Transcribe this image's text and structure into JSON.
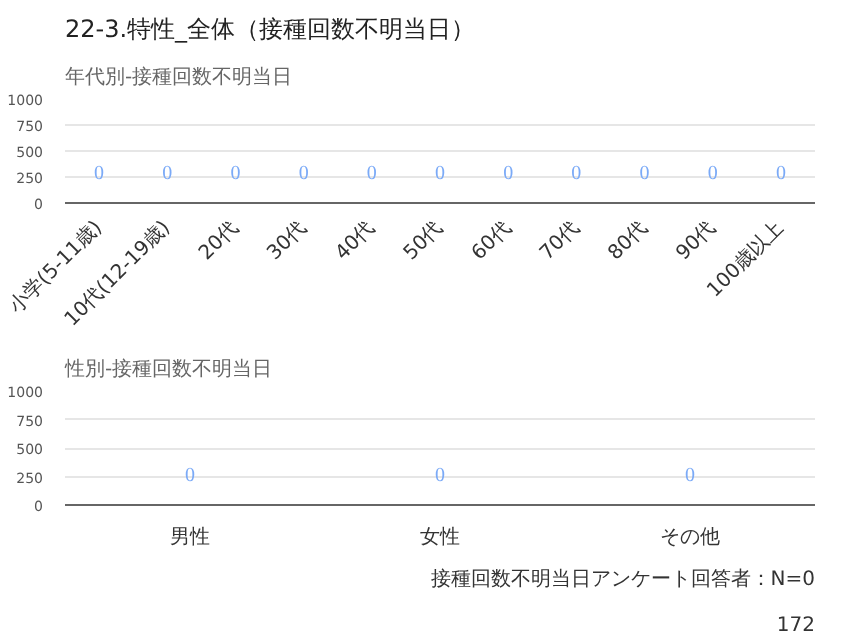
{
  "chart_data": [
    {
      "type": "bar",
      "title": "年代別-接種回数不明当日",
      "annotations": [
        "22-3.特性_全体（接種回数不明当日）"
      ],
      "categories": [
        "小学(5-11歳)",
        "10代(12-19歳)",
        "20代",
        "30代",
        "40代",
        "50代",
        "60代",
        "70代",
        "80代",
        "90代",
        "100歳以上"
      ],
      "values": [
        0,
        0,
        0,
        0,
        0,
        0,
        0,
        0,
        0,
        0,
        0
      ],
      "color": "#7baaf7",
      "ylim": [
        0,
        1000
      ],
      "yticks": [
        0,
        250,
        500,
        750,
        1000
      ],
      "grid": "y",
      "data_labels": true
    },
    {
      "type": "bar",
      "title": "性別-接種回数不明当日",
      "annotations": [
        "接種回数不明当日アンケート回答者：N=0",
        "172"
      ],
      "categories": [
        "男性",
        "女性",
        "その他"
      ],
      "values": [
        0,
        0,
        0
      ],
      "color": "#7baaf7",
      "ylim": [
        0,
        1000
      ],
      "yticks": [
        0,
        250,
        500,
        750,
        1000
      ],
      "grid": "y",
      "data_labels": true
    }
  ]
}
